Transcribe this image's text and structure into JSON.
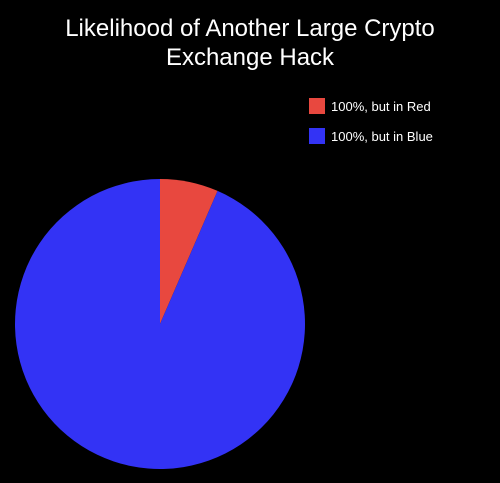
{
  "chart_data": {
    "type": "pie",
    "title_lines": [
      "Likelihood of Another Large Crypto",
      "Exchange Hack"
    ],
    "categories": [
      "100%, but in Red",
      "100%, but in Blue"
    ],
    "values": [
      6.5,
      93.5
    ],
    "colors": [
      "#e8483f",
      "#3333f5"
    ],
    "start_angle_deg": 0,
    "direction": "clockwise",
    "legend_position": "top-right",
    "background": "#000000"
  }
}
